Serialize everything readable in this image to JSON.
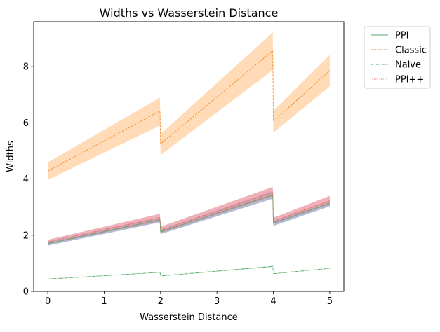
{
  "chart_data": {
    "type": "line",
    "title": "Widths vs Wasserstein Distance",
    "xlabel": "Wasserstein Distance",
    "ylabel": "Widths",
    "xlim": [
      -0.25,
      5.25
    ],
    "ylim": [
      0,
      9.6
    ],
    "x_ticks": [
      0,
      1,
      2,
      3,
      4,
      5
    ],
    "y_ticks": [
      0,
      2,
      4,
      6,
      8
    ],
    "grid": false,
    "legend_position": "outside-top-right",
    "x": [
      0,
      1.99,
      2.0,
      3.99,
      4.0,
      5.0
    ],
    "series": [
      {
        "name": "PPI",
        "color": "#55a868",
        "line_style": "solid",
        "values": [
          1.7,
          2.55,
          2.12,
          3.43,
          2.43,
          3.13
        ],
        "band_low": [
          1.63,
          2.46,
          2.04,
          3.3,
          2.33,
          3.03
        ],
        "band_high": [
          1.78,
          2.64,
          2.2,
          3.57,
          2.52,
          3.24
        ],
        "band_color": "#8da0cb"
      },
      {
        "name": "Classic",
        "color": "#f28e2b",
        "line_style": "dashed",
        "values": [
          4.28,
          6.42,
          5.25,
          8.57,
          6.05,
          7.86
        ],
        "band_low": [
          3.97,
          5.9,
          4.85,
          7.88,
          5.65,
          7.3
        ],
        "band_high": [
          4.59,
          6.9,
          5.6,
          9.22,
          6.42,
          8.42
        ],
        "band_color": "#ffcc99"
      },
      {
        "name": "Naive",
        "color": "#55a868",
        "line_style": "dashdot",
        "values": [
          0.44,
          0.68,
          0.55,
          0.89,
          0.63,
          0.82
        ],
        "band_low": [
          0.43,
          0.67,
          0.54,
          0.87,
          0.62,
          0.81
        ],
        "band_high": [
          0.45,
          0.69,
          0.56,
          0.91,
          0.64,
          0.83
        ],
        "band_color": "#9bd39b"
      },
      {
        "name": "PPI++",
        "color": "#e15759",
        "line_style": "dotted",
        "values": [
          1.76,
          2.63,
          2.18,
          3.52,
          2.5,
          3.22
        ],
        "band_low": [
          1.68,
          2.5,
          2.08,
          3.38,
          2.4,
          3.1
        ],
        "band_high": [
          1.84,
          2.76,
          2.3,
          3.72,
          2.62,
          3.4
        ],
        "band_color": "#e8909a"
      }
    ]
  }
}
